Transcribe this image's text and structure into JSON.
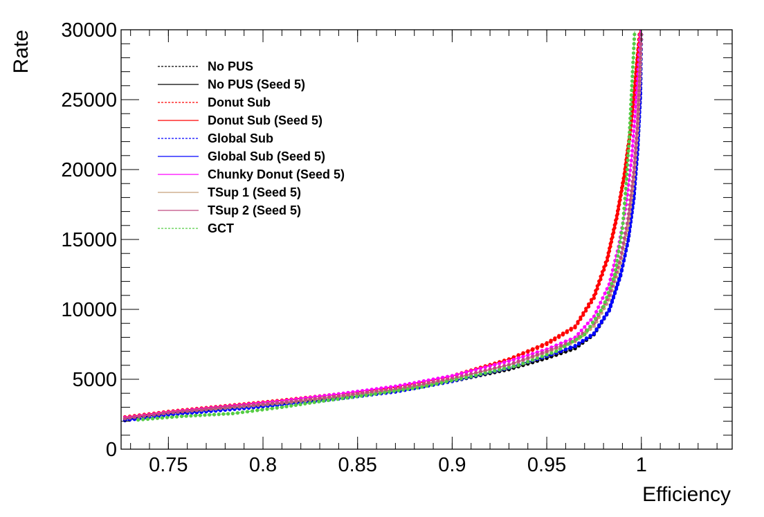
{
  "chart_data": {
    "type": "line",
    "title": "",
    "xlabel": "Efficiency",
    "ylabel": "Rate",
    "xlim": [
      0.725,
      1.048
    ],
    "ylim": [
      0,
      30000
    ],
    "xticks": [
      0.75,
      0.8,
      0.85,
      0.9,
      0.95,
      1
    ],
    "xtick_labels": [
      "0.75",
      "0.8",
      "0.85",
      "0.9",
      "0.95",
      "1"
    ],
    "yticks": [
      0,
      5000,
      10000,
      15000,
      20000,
      25000,
      30000
    ],
    "ytick_labels": [
      "0",
      "5000",
      "10000",
      "15000",
      "20000",
      "25000",
      "30000"
    ],
    "grid": false,
    "legend_position": "top-left",
    "series": [
      {
        "name": "No PUS",
        "color": "#000000",
        "dashed": true,
        "x": [
          0.727,
          0.75,
          0.78,
          0.81,
          0.84,
          0.87,
          0.9,
          0.93,
          0.95,
          0.965,
          0.975,
          0.983,
          0.989,
          0.993,
          0.996,
          0.998,
          0.9995,
          1.0
        ],
        "y": [
          2200,
          2600,
          2950,
          3300,
          3700,
          4150,
          4900,
          5800,
          6600,
          7300,
          8300,
          10000,
          12500,
          15000,
          18000,
          21500,
          25500,
          30000
        ]
      },
      {
        "name": "No PUS (Seed 5)",
        "color": "#000000",
        "dashed": false,
        "x": [
          0.727,
          0.75,
          0.78,
          0.81,
          0.84,
          0.87,
          0.9,
          0.93,
          0.95,
          0.965,
          0.975,
          0.983,
          0.989,
          0.993,
          0.996,
          0.998,
          0.9995,
          1.0
        ],
        "y": [
          2150,
          2550,
          2900,
          3250,
          3650,
          4100,
          4850,
          5700,
          6500,
          7200,
          8200,
          9900,
          12400,
          14900,
          17900,
          21400,
          25400,
          30000
        ]
      },
      {
        "name": "Donut Sub",
        "color": "#ff0000",
        "dashed": true,
        "x": [
          0.727,
          0.75,
          0.78,
          0.81,
          0.84,
          0.87,
          0.9,
          0.93,
          0.95,
          0.965,
          0.975,
          0.982,
          0.987,
          0.991,
          0.994,
          0.996,
          0.998,
          0.9992
        ],
        "y": [
          2250,
          2650,
          3050,
          3450,
          3900,
          4400,
          5200,
          6400,
          7500,
          8700,
          10800,
          13500,
          16500,
          19500,
          22500,
          25000,
          28000,
          30000
        ]
      },
      {
        "name": "Donut Sub (Seed 5)",
        "color": "#ff0000",
        "dashed": false,
        "x": [
          0.727,
          0.75,
          0.78,
          0.81,
          0.84,
          0.87,
          0.9,
          0.93,
          0.95,
          0.965,
          0.975,
          0.982,
          0.987,
          0.991,
          0.994,
          0.996,
          0.998,
          0.9992
        ],
        "y": [
          2300,
          2700,
          3100,
          3500,
          3950,
          4450,
          5250,
          6450,
          7600,
          8800,
          11000,
          13700,
          16700,
          19700,
          22700,
          25200,
          28200,
          30000
        ]
      },
      {
        "name": "Global Sub",
        "color": "#0000ff",
        "dashed": true,
        "x": [
          0.727,
          0.75,
          0.78,
          0.81,
          0.84,
          0.87,
          0.9,
          0.93,
          0.95,
          0.965,
          0.975,
          0.983,
          0.989,
          0.993,
          0.996,
          0.998,
          0.9995,
          1.0
        ],
        "y": [
          2100,
          2500,
          2850,
          3200,
          3650,
          4150,
          4900,
          5850,
          6700,
          7400,
          8300,
          10000,
          12500,
          15000,
          18000,
          21500,
          25500,
          30000
        ]
      },
      {
        "name": "Global Sub (Seed 5)",
        "color": "#0000ff",
        "dashed": false,
        "x": [
          0.727,
          0.75,
          0.78,
          0.81,
          0.84,
          0.87,
          0.9,
          0.93,
          0.95,
          0.965,
          0.975,
          0.983,
          0.989,
          0.993,
          0.996,
          0.998,
          0.9995,
          1.0
        ],
        "y": [
          2050,
          2450,
          2800,
          3150,
          3600,
          4100,
          4850,
          5800,
          6650,
          7350,
          8250,
          9900,
          12400,
          14900,
          17900,
          21400,
          25400,
          30000
        ]
      },
      {
        "name": "Chunky Donut (Seed 5)",
        "color": "#ff00ff",
        "dashed": false,
        "x": [
          0.727,
          0.75,
          0.78,
          0.81,
          0.84,
          0.87,
          0.9,
          0.93,
          0.95,
          0.965,
          0.975,
          0.983,
          0.988,
          0.992,
          0.995,
          0.997,
          0.9985,
          0.9995
        ],
        "y": [
          2250,
          2650,
          3050,
          3450,
          3950,
          4500,
          5250,
          6300,
          7150,
          8000,
          9500,
          11800,
          14500,
          17500,
          21000,
          24500,
          27500,
          30000
        ]
      },
      {
        "name": "TSup 1 (Seed 5)",
        "color": "#c8a07a",
        "dashed": false,
        "x": [
          0.727,
          0.75,
          0.78,
          0.81,
          0.84,
          0.87,
          0.9,
          0.93,
          0.95,
          0.965,
          0.975,
          0.983,
          0.989,
          0.993,
          0.996,
          0.998,
          0.9992,
          1.0
        ],
        "y": [
          2200,
          2600,
          2950,
          3300,
          3750,
          4250,
          5000,
          6000,
          6900,
          7700,
          8800,
          10700,
          13300,
          16000,
          19300,
          22800,
          26500,
          30000
        ]
      },
      {
        "name": "TSup 2 (Seed 5)",
        "color": "#c04a82",
        "dashed": false,
        "x": [
          0.727,
          0.75,
          0.78,
          0.81,
          0.84,
          0.87,
          0.9,
          0.93,
          0.95,
          0.965,
          0.975,
          0.983,
          0.989,
          0.993,
          0.996,
          0.998,
          0.9992,
          1.0
        ],
        "y": [
          2200,
          2600,
          3000,
          3350,
          3800,
          4300,
          5050,
          6050,
          7000,
          7800,
          9000,
          11000,
          13700,
          16500,
          19800,
          23300,
          27000,
          30000
        ]
      },
      {
        "name": "GCT",
        "color": "#55cc44",
        "dashed": true,
        "x": [
          0.734,
          0.757,
          0.784,
          0.81,
          0.832,
          0.857,
          0.884,
          0.91,
          0.935,
          0.955,
          0.97,
          0.98,
          0.986,
          0.99,
          0.992,
          0.9935,
          0.995,
          0.9965
        ],
        "y": [
          2100,
          2350,
          2550,
          3000,
          3450,
          3900,
          4450,
          5200,
          6000,
          7000,
          8200,
          10200,
          12500,
          15800,
          19000,
          22000,
          26000,
          30000
        ]
      }
    ]
  }
}
